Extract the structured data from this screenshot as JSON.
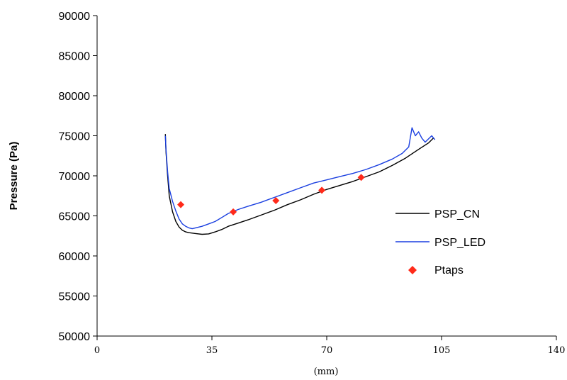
{
  "chart_data": {
    "type": "line",
    "xlabel": "(mm)",
    "ylabel": "Pressure (Pa)",
    "xlim": [
      0,
      140
    ],
    "ylim": [
      50000,
      90000
    ],
    "x_ticks": [
      "0",
      "35",
      "70",
      "105",
      "140"
    ],
    "y_ticks": [
      "50000",
      "55000",
      "60000",
      "65000",
      "70000",
      "75000",
      "80000",
      "85000",
      "90000"
    ],
    "grid": false,
    "legend_position": "right",
    "series": [
      {
        "name": "PSP_CN",
        "kind": "line",
        "color": "#000000",
        "x": [
          20.8,
          21.0,
          21.5,
          22.0,
          23.0,
          24.0,
          25.0,
          26.0,
          27.0,
          28.0,
          30.0,
          32.0,
          34.0,
          36.0,
          38.0,
          40.0,
          43.0,
          46.0,
          50.0,
          54.0,
          58.0,
          62.0,
          66.0,
          70.0,
          74.0,
          78.0,
          82.0,
          86.0,
          90.0,
          94.0,
          98.0,
          101.0,
          102.5
        ],
        "y": [
          75200,
          73000,
          70000,
          67500,
          65500,
          64300,
          63600,
          63200,
          63000,
          62900,
          62800,
          62700,
          62750,
          63000,
          63300,
          63700,
          64100,
          64500,
          65100,
          65700,
          66400,
          67000,
          67700,
          68300,
          68800,
          69300,
          69900,
          70500,
          71300,
          72200,
          73300,
          74100,
          74700
        ]
      },
      {
        "name": "PSP_LED",
        "kind": "line",
        "color": "#1a3fe0",
        "x": [
          20.8,
          21.0,
          21.5,
          22.0,
          23.0,
          24.0,
          25.0,
          26.0,
          27.0,
          28.0,
          29.0,
          30.0,
          32.0,
          34.0,
          36.0,
          38.0,
          40.0,
          43.0,
          46.0,
          50.0,
          54.0,
          58.0,
          62.0,
          66.0,
          70.0,
          74.0,
          78.0,
          82.0,
          86.0,
          90.0,
          93.0,
          95.0,
          96.0,
          97.0,
          98.0,
          99.0,
          100.0,
          101.0,
          102.0,
          103.0
        ],
        "y": [
          75000,
          73300,
          70500,
          68400,
          66800,
          65600,
          64600,
          64000,
          63700,
          63500,
          63400,
          63500,
          63700,
          64000,
          64300,
          64800,
          65300,
          65800,
          66200,
          66700,
          67300,
          67900,
          68500,
          69100,
          69500,
          69900,
          70300,
          70800,
          71400,
          72100,
          72800,
          73600,
          76000,
          75000,
          75500,
          74700,
          74200,
          74600,
          75000,
          74500
        ]
      },
      {
        "name": "Ptaps",
        "kind": "scatter",
        "color": "#ff2a1a",
        "x": [
          25.5,
          41.5,
          54.5,
          68.5,
          80.5
        ],
        "y": [
          66400,
          65500,
          66900,
          68200,
          69800
        ]
      }
    ]
  }
}
